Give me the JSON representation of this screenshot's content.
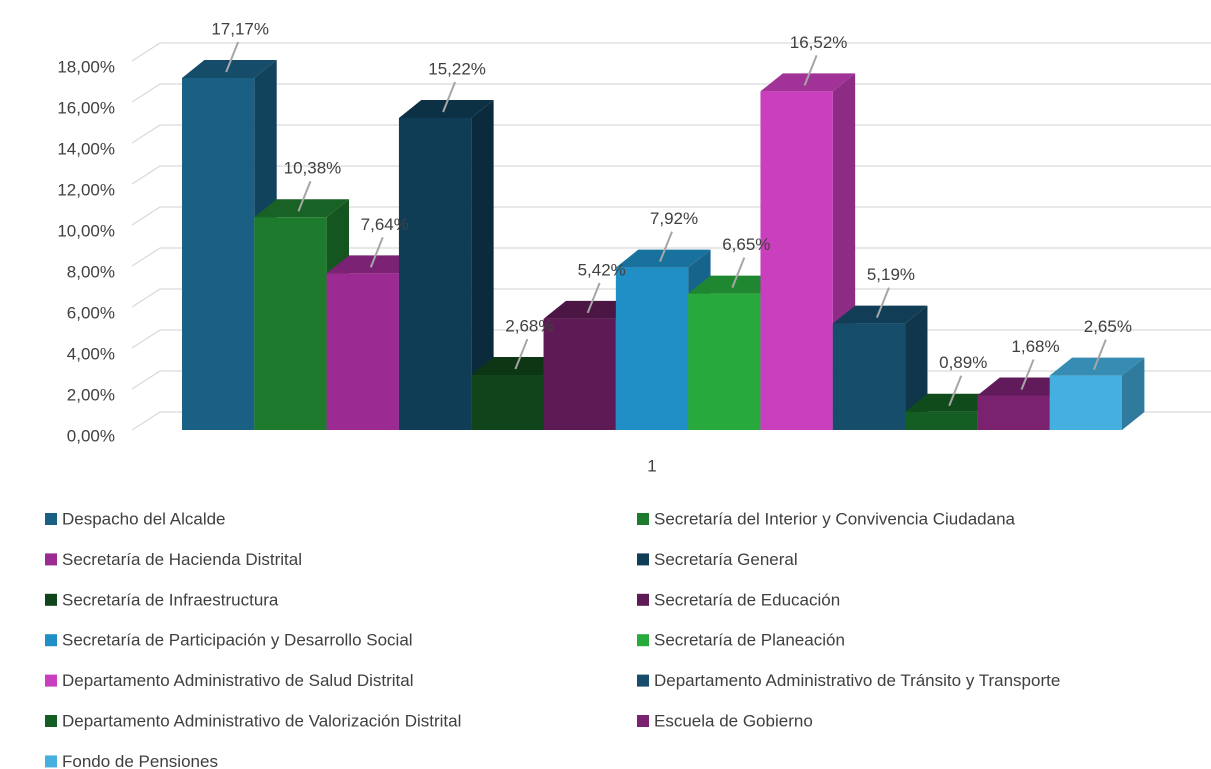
{
  "chart_data": {
    "type": "bar3d",
    "categories": [
      "1"
    ],
    "ylim": [
      0,
      18
    ],
    "yticks": [
      {
        "value": 0,
        "label": "0,00%"
      },
      {
        "value": 2,
        "label": "2,00%"
      },
      {
        "value": 4,
        "label": "4,00%"
      },
      {
        "value": 6,
        "label": "6,00%"
      },
      {
        "value": 8,
        "label": "8,00%"
      },
      {
        "value": 10,
        "label": "10,00%"
      },
      {
        "value": 12,
        "label": "12,00%"
      },
      {
        "value": 14,
        "label": "14,00%"
      },
      {
        "value": 16,
        "label": "16,00%"
      },
      {
        "value": 18,
        "label": "18,00%"
      }
    ],
    "grid": true,
    "legend": "bottom",
    "series": [
      {
        "name": "Despacho del Alcalde",
        "color": "#1a5f84",
        "values": [
          17.17
        ],
        "value_labels": [
          "17,17%"
        ]
      },
      {
        "name": "Secretaría del Interior y Convivencia Ciudadana",
        "color": "#1e7b2e",
        "values": [
          10.38
        ],
        "value_labels": [
          "10,38%"
        ]
      },
      {
        "name": "Secretaría de Hacienda Distrital",
        "color": "#9b2a92",
        "values": [
          7.64
        ],
        "value_labels": [
          "7,64%"
        ]
      },
      {
        "name": "Secretaría General",
        "color": "#0f3d56",
        "values": [
          15.22
        ],
        "value_labels": [
          "15,22%"
        ]
      },
      {
        "name": "Secretaría de Infraestructura",
        "color": "#10441a",
        "values": [
          2.68
        ],
        "value_labels": [
          "2,68%"
        ]
      },
      {
        "name": "Secretaría de Educación",
        "color": "#5e1a55",
        "values": [
          5.42
        ],
        "value_labels": [
          "5,42%"
        ]
      },
      {
        "name": "Secretaría de Participación y Desarrollo Social",
        "color": "#1f8fc6",
        "values": [
          7.92
        ],
        "value_labels": [
          "7,92%"
        ]
      },
      {
        "name": "Secretaría de Planeación",
        "color": "#27a93b",
        "values": [
          6.65
        ],
        "value_labels": [
          "6,65%"
        ]
      },
      {
        "name": "Departamento Administrativo de Salud Distrital",
        "color": "#c93fbd",
        "values": [
          16.52
        ],
        "value_labels": [
          "16,52%"
        ]
      },
      {
        "name": "Departamento Administrativo de Tránsito y Transporte",
        "color": "#154d6b",
        "values": [
          5.19
        ],
        "value_labels": [
          "5,19%"
        ]
      },
      {
        "name": "Departamento Administrativo de Valorización Distrital",
        "color": "#145e23",
        "values": [
          0.89
        ],
        "value_labels": [
          "0,89%"
        ]
      },
      {
        "name": "Escuela de Gobierno",
        "color": "#7a2270",
        "values": [
          1.68
        ],
        "value_labels": [
          "1,68%"
        ]
      },
      {
        "name": "Fondo de Pensiones",
        "color": "#45afe0",
        "values": [
          2.65
        ],
        "value_labels": [
          "2,65%"
        ]
      }
    ]
  }
}
